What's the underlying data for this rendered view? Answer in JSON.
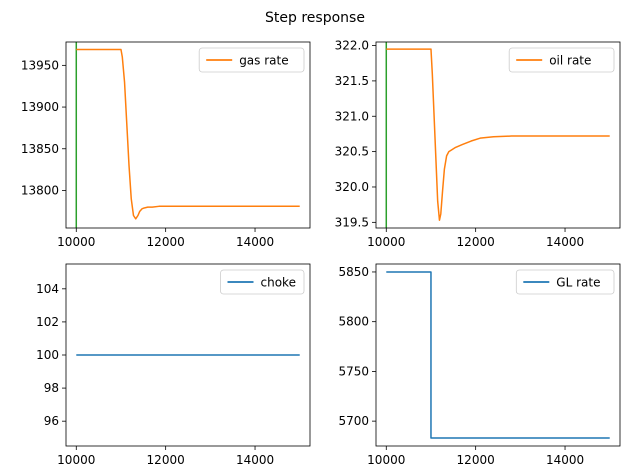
{
  "figure": {
    "title": "Step response",
    "colors": {
      "orange": "#ff7f0e",
      "blue": "#1f77b4",
      "green": "#2ca02c",
      "axis": "#000000"
    }
  },
  "chart_data": [
    {
      "id": "gas",
      "type": "line",
      "title": "",
      "xlabel": "",
      "ylabel": "",
      "xlim": [
        9770,
        15230
      ],
      "ylim": [
        13755,
        13978
      ],
      "xticks": [
        10000,
        12000,
        14000
      ],
      "yticks": [
        13800,
        13850,
        13900,
        13950
      ],
      "grid": false,
      "legend_position": "top-right",
      "vline": {
        "x": 10000,
        "color": "#2ca02c"
      },
      "series": [
        {
          "name": "gas rate",
          "color": "#ff7f0e",
          "x": [
            10000,
            11000,
            11030,
            11080,
            11130,
            11180,
            11230,
            11280,
            11330,
            11380,
            11420,
            11470,
            11520,
            11600,
            11700,
            11850,
            12000,
            12300,
            12700,
            13200,
            14000,
            15000
          ],
          "y": [
            13969,
            13969,
            13960,
            13930,
            13880,
            13830,
            13790,
            13770,
            13766,
            13770,
            13775,
            13778,
            13779,
            13780,
            13780,
            13781,
            13781,
            13781,
            13781,
            13781,
            13781,
            13781
          ]
        }
      ]
    },
    {
      "id": "oil",
      "type": "line",
      "title": "",
      "xlabel": "",
      "ylabel": "",
      "xlim": [
        9770,
        15230
      ],
      "ylim": [
        319.42,
        322.05
      ],
      "xticks": [
        10000,
        12000,
        14000
      ],
      "yticks": [
        319.5,
        320.0,
        320.5,
        321.0,
        321.5,
        322.0
      ],
      "ytick_decimals": 1,
      "grid": false,
      "legend_position": "top-right",
      "vline": {
        "x": 10000,
        "color": "#2ca02c"
      },
      "series": [
        {
          "name": "oil rate",
          "color": "#ff7f0e",
          "x": [
            10000,
            11000,
            11030,
            11070,
            11110,
            11150,
            11190,
            11220,
            11260,
            11300,
            11350,
            11400,
            11450,
            11550,
            11700,
            11900,
            12100,
            12400,
            12800,
            13300,
            14000,
            15000
          ],
          "y": [
            321.95,
            321.95,
            321.6,
            321.0,
            320.4,
            319.8,
            319.53,
            319.62,
            319.95,
            320.25,
            320.44,
            320.5,
            320.52,
            320.56,
            320.6,
            320.65,
            320.69,
            320.71,
            320.72,
            320.72,
            320.72,
            320.72
          ]
        }
      ]
    },
    {
      "id": "choke",
      "type": "line",
      "title": "",
      "xlabel": "",
      "ylabel": "",
      "xlim": [
        9770,
        15230
      ],
      "ylim": [
        94.5,
        105.5
      ],
      "xticks": [
        10000,
        12000,
        14000
      ],
      "yticks": [
        96,
        98,
        100,
        102,
        104
      ],
      "grid": false,
      "legend_position": "top-right",
      "series": [
        {
          "name": "choke",
          "color": "#1f77b4",
          "x": [
            10000,
            15000
          ],
          "y": [
            100,
            100
          ]
        }
      ]
    },
    {
      "id": "gl",
      "type": "line",
      "title": "",
      "xlabel": "",
      "ylabel": "",
      "xlim": [
        9770,
        15230
      ],
      "ylim": [
        5675,
        5858
      ],
      "xticks": [
        10000,
        12000,
        14000
      ],
      "yticks": [
        5700,
        5750,
        5800,
        5850
      ],
      "grid": false,
      "legend_position": "top-right",
      "series": [
        {
          "name": "GL rate",
          "color": "#1f77b4",
          "x": [
            10000,
            11000,
            11000,
            15000
          ],
          "y": [
            5850,
            5850,
            5683,
            5683
          ]
        }
      ]
    }
  ]
}
